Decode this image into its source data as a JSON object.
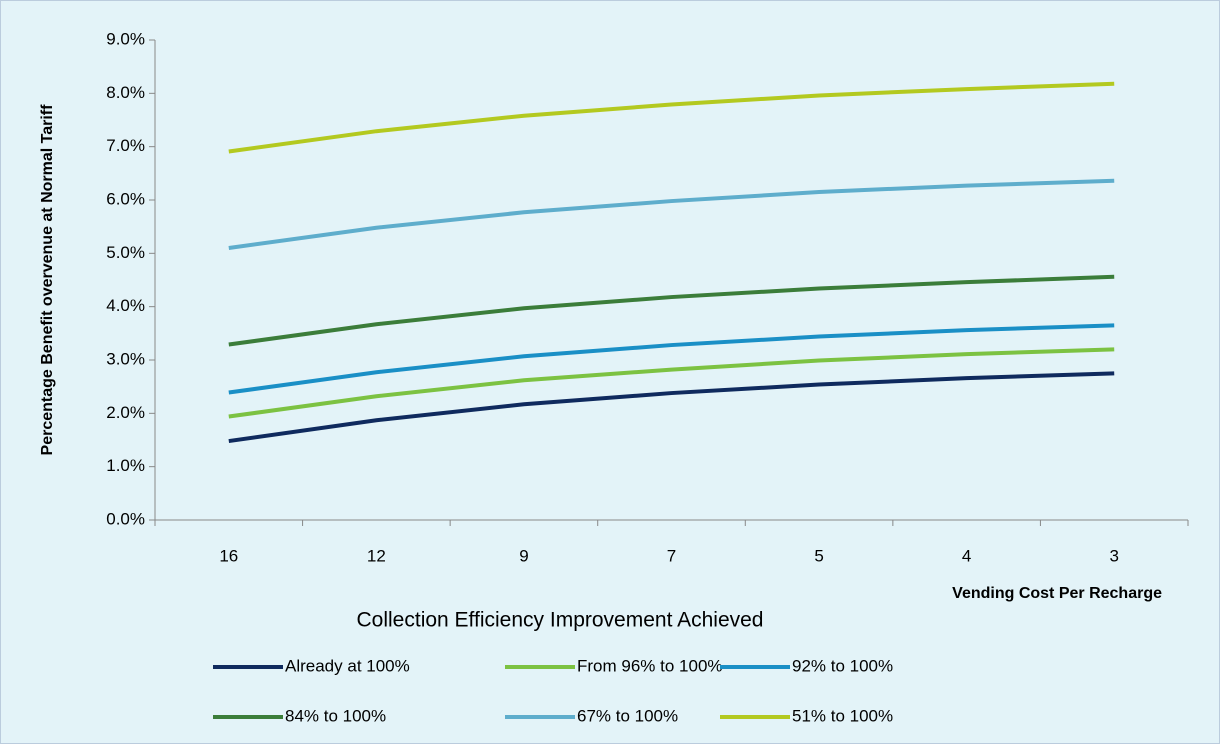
{
  "chart_data": {
    "type": "line",
    "x_label": "Vending Cost Per Recharge",
    "y_label": "Percentage Benefit overvenue at Normal Tariff",
    "legend_title": "Collection Efficiency Improvement Achieved",
    "categories": [
      "16",
      "12",
      "9",
      "7",
      "5",
      "4",
      "3"
    ],
    "ylim": [
      0,
      9
    ],
    "yticks": [
      {
        "value": 0,
        "label": "0.0%"
      },
      {
        "value": 1,
        "label": "1.0%"
      },
      {
        "value": 2,
        "label": "2.0%"
      },
      {
        "value": 3,
        "label": "3.0%"
      },
      {
        "value": 4,
        "label": "4.0%"
      },
      {
        "value": 5,
        "label": "5.0%"
      },
      {
        "value": 6,
        "label": "6.0%"
      },
      {
        "value": 7,
        "label": "7.0%"
      },
      {
        "value": 8,
        "label": "8.0%"
      },
      {
        "value": 9,
        "label": "9.0%"
      }
    ],
    "grid": false,
    "legend": "bottom",
    "series": [
      {
        "name": "Already at 100%",
        "color": "#0f2a5e",
        "values": [
          1.48,
          1.87,
          2.17,
          2.38,
          2.54,
          2.66,
          2.75
        ]
      },
      {
        "name": "From 96% to 100%",
        "color": "#7cc242",
        "values": [
          1.94,
          2.32,
          2.62,
          2.82,
          2.99,
          3.11,
          3.2
        ]
      },
      {
        "name": "92% to 100%",
        "color": "#1a8fc6",
        "values": [
          2.39,
          2.77,
          3.07,
          3.28,
          3.44,
          3.56,
          3.65
        ]
      },
      {
        "name": "84% to 100%",
        "color": "#3b7d3a",
        "values": [
          3.29,
          3.67,
          3.97,
          4.18,
          4.34,
          4.46,
          4.56
        ]
      },
      {
        "name": "67% to 100%",
        "color": "#5eadcc",
        "values": [
          5.1,
          5.48,
          5.77,
          5.98,
          6.15,
          6.27,
          6.36
        ]
      },
      {
        "name": "51% to 100%",
        "color": "#b3c920",
        "values": [
          6.91,
          7.29,
          7.58,
          7.79,
          7.96,
          8.08,
          8.18
        ]
      }
    ]
  }
}
